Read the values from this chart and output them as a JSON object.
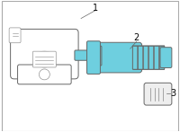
{
  "bg_color": "#ffffff",
  "border_color": "#aaaaaa",
  "stem_color": "#6ecfdf",
  "stem_dark": "#4ab8cc",
  "outline_color": "#666666",
  "outline_thin": "#888888",
  "lw": 0.7,
  "lw_thin": 0.45,
  "label_1": "1",
  "label_2": "2",
  "label_3": "3",
  "label_fs": 7,
  "fig_width": 2.0,
  "fig_height": 1.47,
  "dpi": 100
}
